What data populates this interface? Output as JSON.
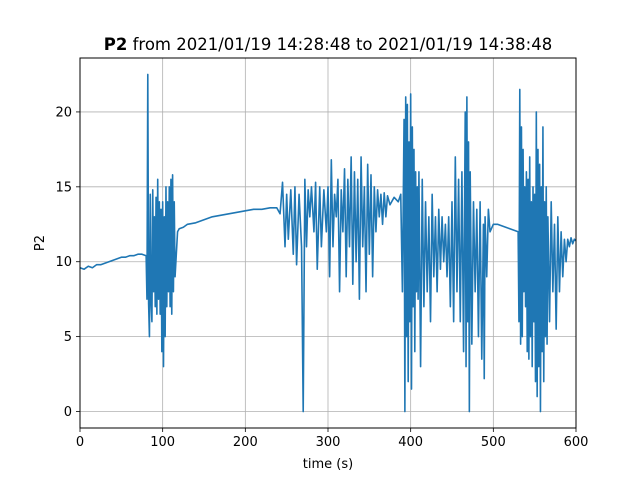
{
  "chart_data": {
    "type": "line",
    "title_bold": "P2",
    "title_rest": " from 2021/01/19 14:28:48 to 2021/01/19 14:38:48",
    "xlabel": "time (s)",
    "ylabel": "P2",
    "xlim": [
      0,
      600
    ],
    "ylim": [
      -1.1,
      23.6
    ],
    "xticks": [
      0,
      100,
      200,
      300,
      400,
      500,
      600
    ],
    "yticks": [
      0,
      5,
      10,
      15,
      20
    ],
    "grid": true,
    "series": [
      {
        "color": "#1f77b4",
        "points": [
          [
            0,
            9.6
          ],
          [
            5,
            9.5
          ],
          [
            10,
            9.7
          ],
          [
            15,
            9.6
          ],
          [
            20,
            9.8
          ],
          [
            25,
            9.8
          ],
          [
            30,
            9.9
          ],
          [
            35,
            10.0
          ],
          [
            40,
            10.1
          ],
          [
            45,
            10.2
          ],
          [
            50,
            10.3
          ],
          [
            55,
            10.3
          ],
          [
            60,
            10.4
          ],
          [
            65,
            10.4
          ],
          [
            70,
            10.5
          ],
          [
            75,
            10.5
          ],
          [
            80,
            10.4
          ],
          [
            81,
            7.5
          ],
          [
            82,
            22.5
          ],
          [
            83,
            7.2
          ],
          [
            84,
            5.0
          ],
          [
            85,
            14.5
          ],
          [
            86,
            7.3
          ],
          [
            87,
            6.0
          ],
          [
            88,
            14.8
          ],
          [
            89,
            8.0
          ],
          [
            90,
            13.0
          ],
          [
            91,
            7.0
          ],
          [
            92,
            14.3
          ],
          [
            93,
            6.5
          ],
          [
            94,
            15.5
          ],
          [
            95,
            7.5
          ],
          [
            96,
            14.0
          ],
          [
            97,
            6.5
          ],
          [
            98,
            13.5
          ],
          [
            99,
            4.0
          ],
          [
            100,
            14.0
          ],
          [
            101,
            3.0
          ],
          [
            102,
            13.0
          ],
          [
            103,
            5.0
          ],
          [
            104,
            15.0
          ],
          [
            105,
            7.0
          ],
          [
            106,
            14.0
          ],
          [
            107,
            8.0
          ],
          [
            108,
            15.0
          ],
          [
            109,
            7.0
          ],
          [
            110,
            15.5
          ],
          [
            111,
            6.5
          ],
          [
            112,
            15.8
          ],
          [
            113,
            8.0
          ],
          [
            114,
            14.0
          ],
          [
            115,
            9.0
          ],
          [
            118,
            12.0
          ],
          [
            120,
            12.2
          ],
          [
            125,
            12.3
          ],
          [
            130,
            12.5
          ],
          [
            140,
            12.6
          ],
          [
            150,
            12.8
          ],
          [
            160,
            13.0
          ],
          [
            170,
            13.1
          ],
          [
            180,
            13.2
          ],
          [
            190,
            13.3
          ],
          [
            200,
            13.4
          ],
          [
            210,
            13.5
          ],
          [
            220,
            13.5
          ],
          [
            230,
            13.6
          ],
          [
            238,
            13.6
          ],
          [
            242,
            13.2
          ],
          [
            245,
            15.3
          ],
          [
            248,
            11.0
          ],
          [
            250,
            14.5
          ],
          [
            252,
            11.5
          ],
          [
            255,
            14.8
          ],
          [
            258,
            10.5
          ],
          [
            260,
            15.0
          ],
          [
            262,
            9.8
          ],
          [
            265,
            14.5
          ],
          [
            268,
            11.0
          ],
          [
            270,
            0.0
          ],
          [
            272,
            15.5
          ],
          [
            274,
            11.0
          ],
          [
            276,
            14.8
          ],
          [
            278,
            13.0
          ],
          [
            280,
            15.0
          ],
          [
            283,
            12.0
          ],
          [
            285,
            15.3
          ],
          [
            287,
            9.5
          ],
          [
            290,
            15.0
          ],
          [
            292,
            11.0
          ],
          [
            295,
            14.8
          ],
          [
            298,
            12.0
          ],
          [
            300,
            15.0
          ],
          [
            302,
            9.0
          ],
          [
            304,
            16.8
          ],
          [
            306,
            11.0
          ],
          [
            308,
            14.5
          ],
          [
            310,
            13.0
          ],
          [
            312,
            15.5
          ],
          [
            314,
            8.0
          ],
          [
            316,
            14.8
          ],
          [
            318,
            12.0
          ],
          [
            320,
            16.2
          ],
          [
            322,
            9.0
          ],
          [
            324,
            15.5
          ],
          [
            326,
            11.0
          ],
          [
            328,
            17.0
          ],
          [
            330,
            8.5
          ],
          [
            332,
            16.0
          ],
          [
            334,
            10.0
          ],
          [
            336,
            15.5
          ],
          [
            338,
            7.5
          ],
          [
            340,
            17.0
          ],
          [
            342,
            11.0
          ],
          [
            344,
            15.0
          ],
          [
            346,
            8.0
          ],
          [
            348,
            16.5
          ],
          [
            350,
            10.5
          ],
          [
            352,
            15.8
          ],
          [
            354,
            9.0
          ],
          [
            356,
            15.0
          ],
          [
            358,
            12.0
          ],
          [
            360,
            14.8
          ],
          [
            362,
            13.0
          ],
          [
            364,
            14.5
          ],
          [
            366,
            12.5
          ],
          [
            368,
            14.6
          ],
          [
            370,
            13.0
          ],
          [
            372,
            14.4
          ],
          [
            375,
            13.8
          ],
          [
            380,
            14.3
          ],
          [
            385,
            14.0
          ],
          [
            388,
            14.5
          ],
          [
            390,
            8.0
          ],
          [
            392,
            19.5
          ],
          [
            393,
            0.0
          ],
          [
            394,
            21.0
          ],
          [
            395,
            5.0
          ],
          [
            396,
            20.5
          ],
          [
            397,
            2.0
          ],
          [
            398,
            18.0
          ],
          [
            399,
            6.0
          ],
          [
            400,
            21.2
          ],
          [
            401,
            1.5
          ],
          [
            402,
            19.0
          ],
          [
            403,
            7.0
          ],
          [
            404,
            17.5
          ],
          [
            405,
            4.0
          ],
          [
            406,
            16.0
          ],
          [
            407,
            8.0
          ],
          [
            408,
            15.0
          ],
          [
            409,
            7.5
          ],
          [
            410,
            16.0
          ],
          [
            412,
            3.0
          ],
          [
            414,
            15.5
          ],
          [
            416,
            7.0
          ],
          [
            418,
            14.0
          ],
          [
            420,
            8.0
          ],
          [
            422,
            13.0
          ],
          [
            424,
            6.0
          ],
          [
            426,
            14.5
          ],
          [
            428,
            9.0
          ],
          [
            430,
            13.0
          ],
          [
            432,
            8.0
          ],
          [
            434,
            13.5
          ],
          [
            436,
            9.5
          ],
          [
            438,
            13.0
          ],
          [
            440,
            10.0
          ],
          [
            442,
            12.5
          ],
          [
            444,
            9.0
          ],
          [
            446,
            13.0
          ],
          [
            448,
            7.0
          ],
          [
            450,
            14.0
          ],
          [
            452,
            6.0
          ],
          [
            454,
            17.0
          ],
          [
            456,
            8.0
          ],
          [
            458,
            15.5
          ],
          [
            460,
            6.0
          ],
          [
            462,
            16.0
          ],
          [
            464,
            4.0
          ],
          [
            466,
            20.0
          ],
          [
            467,
            3.0
          ],
          [
            468,
            21.0
          ],
          [
            469,
            6.0
          ],
          [
            470,
            18.0
          ],
          [
            471,
            0.0
          ],
          [
            472,
            16.0
          ],
          [
            474,
            4.5
          ],
          [
            476,
            14.0
          ],
          [
            478,
            8.0
          ],
          [
            480,
            13.5
          ],
          [
            482,
            5.0
          ],
          [
            484,
            14.0
          ],
          [
            486,
            3.5
          ],
          [
            488,
            12.5
          ],
          [
            489,
            2.2
          ],
          [
            490,
            13.0
          ],
          [
            492,
            9.0
          ],
          [
            494,
            13.5
          ],
          [
            496,
            12.0
          ],
          [
            500,
            12.5
          ],
          [
            505,
            12.5
          ],
          [
            510,
            12.4
          ],
          [
            515,
            12.3
          ],
          [
            520,
            12.2
          ],
          [
            525,
            12.1
          ],
          [
            530,
            12.0
          ],
          [
            531,
            6.0
          ],
          [
            532,
            21.5
          ],
          [
            533,
            4.5
          ],
          [
            534,
            19.0
          ],
          [
            535,
            5.0
          ],
          [
            536,
            17.5
          ],
          [
            537,
            8.0
          ],
          [
            538,
            15.0
          ],
          [
            539,
            7.0
          ],
          [
            540,
            16.0
          ],
          [
            541,
            4.0
          ],
          [
            542,
            15.5
          ],
          [
            543,
            3.5
          ],
          [
            544,
            17.0
          ],
          [
            545,
            5.0
          ],
          [
            546,
            14.0
          ],
          [
            547,
            3.0
          ],
          [
            548,
            15.0
          ],
          [
            549,
            6.0
          ],
          [
            550,
            14.5
          ],
          [
            551,
            2.0
          ],
          [
            552,
            20.0
          ],
          [
            553,
            1.0
          ],
          [
            554,
            17.5
          ],
          [
            555,
            3.0
          ],
          [
            556,
            16.5
          ],
          [
            557,
            0.0
          ],
          [
            558,
            15.0
          ],
          [
            559,
            4.0
          ],
          [
            560,
            19.0
          ],
          [
            561,
            2.0
          ],
          [
            562,
            14.0
          ],
          [
            563,
            5.0
          ],
          [
            564,
            15.0
          ],
          [
            565,
            4.5
          ],
          [
            566,
            13.0
          ],
          [
            568,
            6.0
          ],
          [
            570,
            14.0
          ],
          [
            572,
            8.0
          ],
          [
            574,
            12.5
          ],
          [
            576,
            5.5
          ],
          [
            578,
            13.0
          ],
          [
            580,
            8.0
          ],
          [
            582,
            12.0
          ],
          [
            584,
            9.0
          ],
          [
            586,
            11.5
          ],
          [
            588,
            10.0
          ],
          [
            590,
            11.5
          ],
          [
            592,
            11.0
          ],
          [
            594,
            11.6
          ],
          [
            596,
            11.2
          ],
          [
            598,
            11.5
          ],
          [
            600,
            11.4
          ]
        ]
      }
    ]
  }
}
